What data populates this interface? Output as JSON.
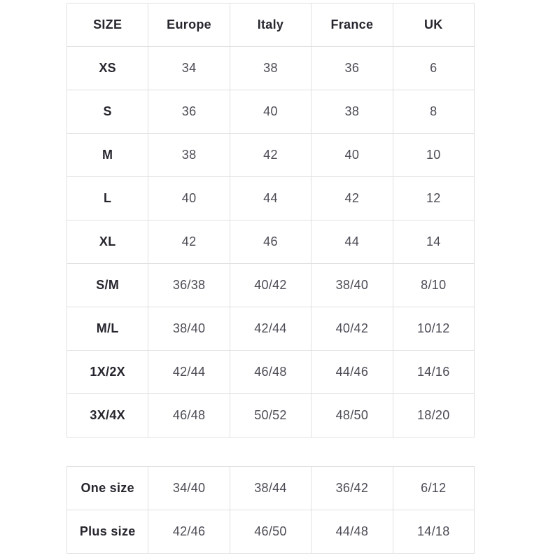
{
  "colors": {
    "background": "#ffffff",
    "border": "#e0e0e0",
    "header_text": "#26262e",
    "value_text": "#4c4c56"
  },
  "chart_data": [
    {
      "type": "table",
      "title": "",
      "columns": [
        "SIZE",
        "Europe",
        "Italy",
        "France",
        "UK"
      ],
      "rows": [
        {
          "label": "XS",
          "values": [
            "34",
            "38",
            "36",
            "6"
          ]
        },
        {
          "label": "S",
          "values": [
            "36",
            "40",
            "38",
            "8"
          ]
        },
        {
          "label": "M",
          "values": [
            "38",
            "42",
            "40",
            "10"
          ]
        },
        {
          "label": "L",
          "values": [
            "40",
            "44",
            "42",
            "12"
          ]
        },
        {
          "label": "XL",
          "values": [
            "42",
            "46",
            "44",
            "14"
          ]
        },
        {
          "label": "S/M",
          "values": [
            "36/38",
            "40/42",
            "38/40",
            "8/10"
          ]
        },
        {
          "label": "M/L",
          "values": [
            "38/40",
            "42/44",
            "40/42",
            "10/12"
          ]
        },
        {
          "label": "1X/2X",
          "values": [
            "42/44",
            "46/48",
            "44/46",
            "14/16"
          ]
        },
        {
          "label": "3X/4X",
          "values": [
            "46/48",
            "50/52",
            "48/50",
            "18/20"
          ]
        }
      ]
    },
    {
      "type": "table",
      "title": "",
      "columns": [],
      "rows": [
        {
          "label": "One size",
          "values": [
            "34/40",
            "38/44",
            "36/42",
            "6/12"
          ]
        },
        {
          "label": "Plus size",
          "values": [
            "42/46",
            "46/50",
            "44/48",
            "14/18"
          ]
        }
      ]
    }
  ]
}
